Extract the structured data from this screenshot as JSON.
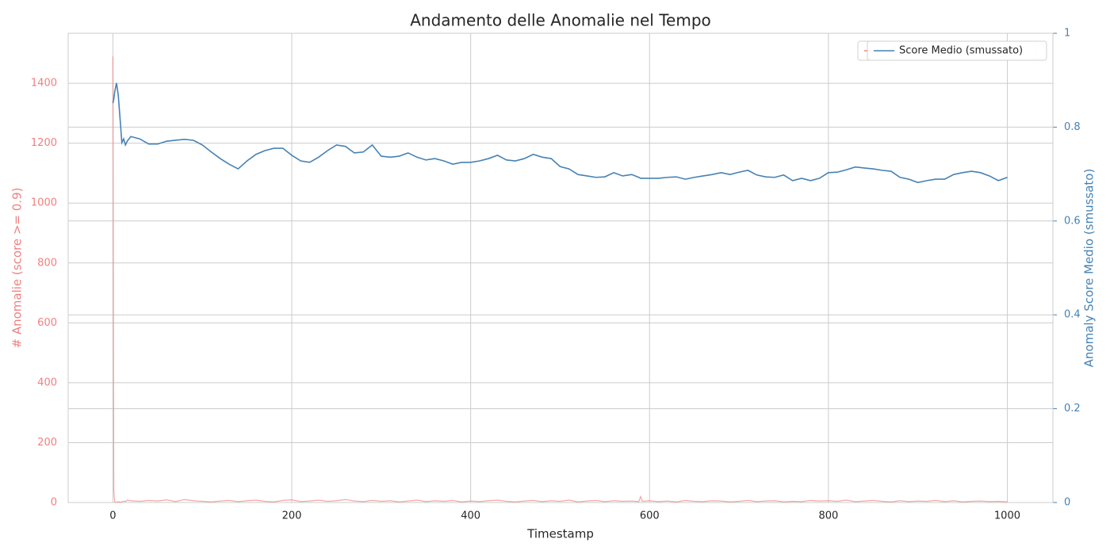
{
  "chart_data": {
    "type": "line",
    "title": "Andamento delle Anomalie nel Tempo",
    "x_label": "Timestamp",
    "y_label": "# Anomalie (score >= 0.9)",
    "y2_label": "Anomaly Score Medio (smussato)",
    "x": [
      0,
      1,
      2,
      4,
      6,
      8,
      10,
      12,
      14,
      16,
      20,
      30,
      40,
      50,
      60,
      70,
      80,
      90,
      100,
      110,
      120,
      130,
      140,
      150,
      160,
      170,
      180,
      190,
      200,
      210,
      220,
      230,
      240,
      250,
      260,
      270,
      280,
      290,
      300,
      310,
      320,
      330,
      340,
      350,
      360,
      370,
      380,
      390,
      400,
      410,
      420,
      430,
      440,
      450,
      460,
      470,
      480,
      490,
      500,
      510,
      520,
      530,
      540,
      550,
      560,
      570,
      580,
      588,
      590,
      592,
      600,
      610,
      620,
      630,
      640,
      650,
      660,
      670,
      680,
      690,
      700,
      710,
      720,
      730,
      740,
      750,
      760,
      770,
      780,
      790,
      800,
      810,
      820,
      830,
      840,
      850,
      860,
      870,
      880,
      890,
      900,
      910,
      920,
      930,
      940,
      950,
      960,
      970,
      980,
      990,
      1000
    ],
    "series": [
      {
        "name": "# Anomalie",
        "color": "#f08080",
        "axis": "y",
        "values": [
          1490,
          40,
          2,
          0,
          3,
          1,
          2,
          5,
          3,
          8,
          6,
          4,
          7,
          5,
          9,
          3,
          10,
          6,
          4,
          2,
          5,
          7,
          3,
          6,
          8,
          4,
          2,
          7,
          9,
          3,
          5,
          8,
          4,
          6,
          10,
          5,
          3,
          7,
          4,
          6,
          2,
          5,
          8,
          3,
          6,
          4,
          7,
          2,
          5,
          3,
          6,
          8,
          4,
          2,
          5,
          7,
          3,
          6,
          4,
          8,
          2,
          5,
          7,
          3,
          6,
          4,
          5,
          3,
          20,
          4,
          6,
          3,
          5,
          2,
          7,
          4,
          3,
          6,
          5,
          2,
          4,
          7,
          3,
          5,
          6,
          2,
          4,
          3,
          7,
          5,
          6,
          4,
          8,
          3,
          5,
          7,
          4,
          2,
          6,
          3,
          5,
          4,
          7,
          3,
          6,
          2,
          4,
          5,
          3,
          4,
          2
        ]
      },
      {
        "name": "Score Medio (smussato)",
        "color": "#4682b4",
        "axis": "y2",
        "values": [
          0.851,
          0.86,
          0.875,
          0.894,
          0.868,
          0.818,
          0.767,
          0.775,
          0.762,
          0.77,
          0.78,
          0.775,
          0.764,
          0.764,
          0.77,
          0.772,
          0.774,
          0.772,
          0.762,
          0.747,
          0.733,
          0.721,
          0.711,
          0.728,
          0.742,
          0.75,
          0.755,
          0.755,
          0.74,
          0.728,
          0.725,
          0.736,
          0.75,
          0.762,
          0.759,
          0.745,
          0.747,
          0.762,
          0.738,
          0.736,
          0.738,
          0.745,
          0.736,
          0.73,
          0.733,
          0.728,
          0.721,
          0.725,
          0.725,
          0.728,
          0.733,
          0.74,
          0.73,
          0.728,
          0.733,
          0.742,
          0.736,
          0.733,
          0.716,
          0.711,
          0.699,
          0.696,
          0.693,
          0.694,
          0.703,
          0.696,
          0.699,
          0.693,
          0.691,
          0.691,
          0.691,
          0.691,
          0.693,
          0.694,
          0.689,
          0.693,
          0.696,
          0.699,
          0.703,
          0.699,
          0.704,
          0.708,
          0.698,
          0.694,
          0.693,
          0.698,
          0.686,
          0.691,
          0.686,
          0.691,
          0.703,
          0.704,
          0.709,
          0.715,
          0.713,
          0.711,
          0.708,
          0.706,
          0.693,
          0.689,
          0.682,
          0.686,
          0.689,
          0.689,
          0.699,
          0.703,
          0.706,
          0.703,
          0.696,
          0.686,
          0.693
        ]
      }
    ],
    "xlim": [
      -50,
      1051
    ],
    "xticks": [
      0,
      200,
      400,
      600,
      800,
      1000
    ],
    "ylim": [
      0,
      1567
    ],
    "yticks": [
      0,
      200,
      400,
      600,
      800,
      1000,
      1200,
      1400
    ],
    "y2lim": [
      0,
      1
    ],
    "y2ticks": [
      0.0,
      0.2,
      0.4,
      0.6,
      0.8,
      1.0
    ],
    "grid": true,
    "legend": "upper right"
  }
}
